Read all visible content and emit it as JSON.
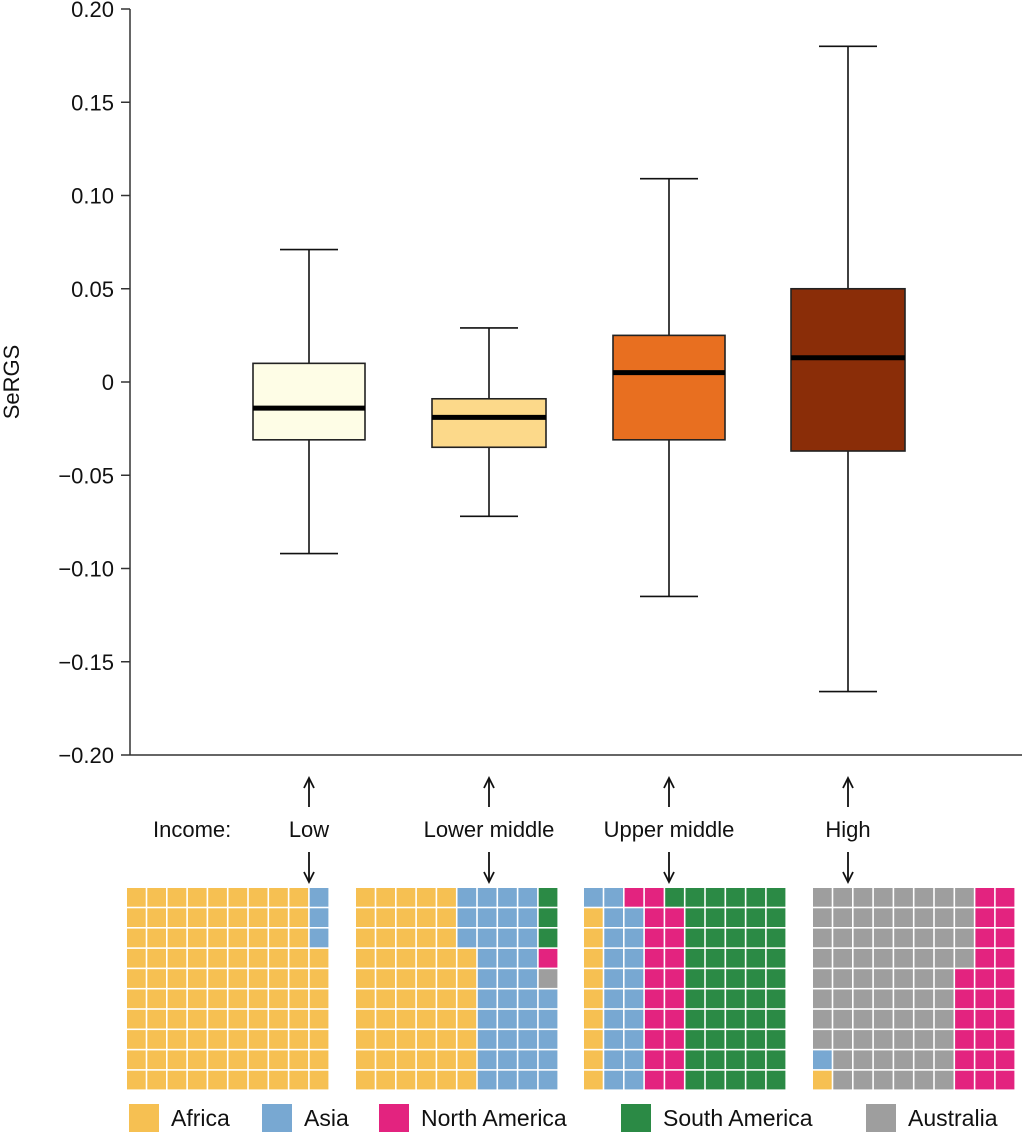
{
  "chart_data": {
    "type": "box",
    "title": "",
    "xlabel": "",
    "ylabel": "SeRGS",
    "ylim": [
      -0.2,
      0.2
    ],
    "yticks": [
      {
        "value": 0.2,
        "label": "0.20"
      },
      {
        "value": 0.15,
        "label": "0.15"
      },
      {
        "value": 0.1,
        "label": "0.10"
      },
      {
        "value": 0.05,
        "label": "0.05"
      },
      {
        "value": 0.0,
        "label": "0"
      },
      {
        "value": -0.05,
        "label": "−0.05"
      },
      {
        "value": -0.1,
        "label": "−0.10"
      },
      {
        "value": -0.15,
        "label": "−0.15"
      },
      {
        "value": -0.2,
        "label": "−0.20"
      }
    ],
    "income_label": "Income:",
    "groups": [
      {
        "name": "Low",
        "min": -0.092,
        "q1": -0.031,
        "median": -0.014,
        "q3": 0.01,
        "max": 0.071,
        "color": "#FEFDE6"
      },
      {
        "name": "Lower middle",
        "min": -0.072,
        "q1": -0.035,
        "median": -0.019,
        "q3": -0.009,
        "max": 0.029,
        "color": "#FCD98A"
      },
      {
        "name": "Upper middle",
        "min": -0.115,
        "q1": -0.031,
        "median": 0.005,
        "q3": 0.025,
        "max": 0.109,
        "color": "#E86F20"
      },
      {
        "name": "High",
        "min": -0.166,
        "q1": -0.037,
        "median": 0.013,
        "q3": 0.05,
        "max": 0.18,
        "color": "#8A2D08"
      }
    ],
    "continents": [
      {
        "name": "Africa",
        "color": "#F6C052"
      },
      {
        "name": "Asia",
        "color": "#78A8D2"
      },
      {
        "name": "North America",
        "color": "#E3237F"
      },
      {
        "name": "South America",
        "color": "#2B8A45"
      },
      {
        "name": "Australia",
        "color": "#9E9E9E"
      }
    ],
    "waffle_grid": {
      "cols": 10,
      "rows": 10
    },
    "waffles": [
      {
        "group": "Low",
        "columns": [
          [
            [
              10,
              "Africa"
            ]
          ],
          [
            [
              10,
              "Africa"
            ]
          ],
          [
            [
              10,
              "Africa"
            ]
          ],
          [
            [
              10,
              "Africa"
            ]
          ],
          [
            [
              10,
              "Africa"
            ]
          ],
          [
            [
              10,
              "Africa"
            ]
          ],
          [
            [
              10,
              "Africa"
            ]
          ],
          [
            [
              10,
              "Africa"
            ]
          ],
          [
            [
              10,
              "Africa"
            ]
          ],
          [
            [
              3,
              "Asia"
            ],
            [
              7,
              "Africa"
            ]
          ]
        ]
      },
      {
        "group": "Lower middle",
        "columns": [
          [
            [
              10,
              "Africa"
            ]
          ],
          [
            [
              10,
              "Africa"
            ]
          ],
          [
            [
              10,
              "Africa"
            ]
          ],
          [
            [
              10,
              "Africa"
            ]
          ],
          [
            [
              10,
              "Africa"
            ]
          ],
          [
            [
              3,
              "Asia"
            ],
            [
              7,
              "Africa"
            ]
          ],
          [
            [
              10,
              "Asia"
            ]
          ],
          [
            [
              10,
              "Asia"
            ]
          ],
          [
            [
              10,
              "Asia"
            ]
          ],
          [
            [
              3,
              "South America"
            ],
            [
              1,
              "North America"
            ],
            [
              1,
              "Australia"
            ],
            [
              5,
              "Asia"
            ]
          ]
        ]
      },
      {
        "group": "Upper middle",
        "columns": [
          [
            [
              1,
              "Asia"
            ],
            [
              9,
              "Africa"
            ]
          ],
          [
            [
              10,
              "Asia"
            ]
          ],
          [
            [
              1,
              "North America"
            ],
            [
              9,
              "Asia"
            ]
          ],
          [
            [
              10,
              "North America"
            ]
          ],
          [
            [
              1,
              "South America"
            ],
            [
              9,
              "North America"
            ]
          ],
          [
            [
              10,
              "South America"
            ]
          ],
          [
            [
              10,
              "South America"
            ]
          ],
          [
            [
              10,
              "South America"
            ]
          ],
          [
            [
              10,
              "South America"
            ]
          ],
          [
            [
              10,
              "South America"
            ]
          ]
        ]
      },
      {
        "group": "High",
        "columns": [
          [
            [
              8,
              "Australia"
            ],
            [
              1,
              "Asia"
            ],
            [
              1,
              "Africa"
            ]
          ],
          [
            [
              10,
              "Australia"
            ]
          ],
          [
            [
              10,
              "Australia"
            ]
          ],
          [
            [
              10,
              "Australia"
            ]
          ],
          [
            [
              10,
              "Australia"
            ]
          ],
          [
            [
              10,
              "Australia"
            ]
          ],
          [
            [
              10,
              "Australia"
            ]
          ],
          [
            [
              4,
              "Australia"
            ],
            [
              6,
              "North America"
            ]
          ],
          [
            [
              10,
              "North America"
            ]
          ],
          [
            [
              10,
              "North America"
            ]
          ]
        ]
      }
    ]
  }
}
